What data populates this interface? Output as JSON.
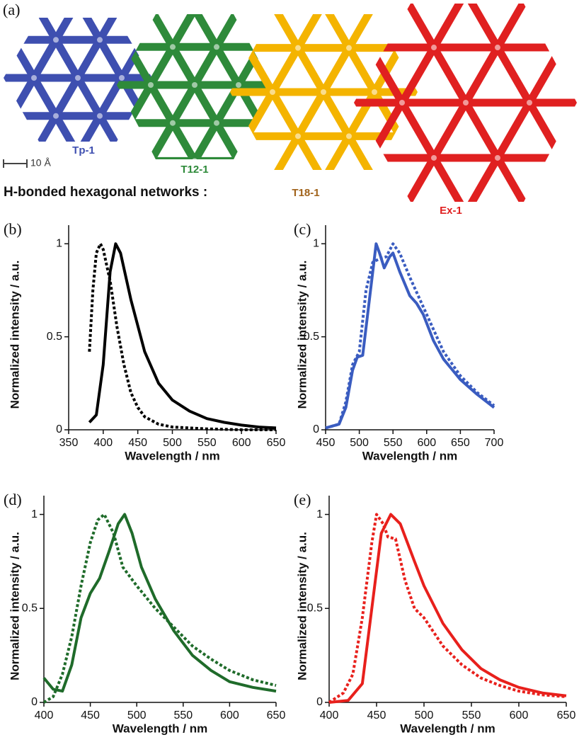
{
  "panel_a": {
    "label": "(a)",
    "scale": "10 Å",
    "caption": "H-bonded hexagonal networks :",
    "networks": [
      {
        "name": "Tp-1",
        "color": "#3e4fb0"
      },
      {
        "name": "T12-1",
        "color": "#2e8a3a"
      },
      {
        "name": "T18-1",
        "color": "#f4b400"
      },
      {
        "name": "Ex-1",
        "color": "#e02020"
      }
    ]
  },
  "chart_data": [
    {
      "type": "line",
      "panel": "(b)",
      "x_label": "Wavelength / nm",
      "y_label": "Normalized intensity / a.u.",
      "xlim": [
        350,
        650
      ],
      "xticks": [
        350,
        400,
        450,
        500,
        550,
        600,
        650
      ],
      "ylim": [
        0,
        1.1
      ],
      "yticks": [
        0,
        0.5,
        1
      ],
      "series": [
        {
          "color": "#000000",
          "dashed": false,
          "x": [
            380,
            390,
            400,
            410,
            418,
            425,
            440,
            460,
            480,
            500,
            525,
            550,
            575,
            600,
            625,
            650
          ],
          "values": [
            0.04,
            0.08,
            0.35,
            0.85,
            1.0,
            0.95,
            0.7,
            0.42,
            0.25,
            0.16,
            0.1,
            0.06,
            0.04,
            0.025,
            0.015,
            0.01
          ]
        },
        {
          "color": "#000000",
          "dashed": true,
          "x": [
            380,
            385,
            390,
            396,
            400,
            410,
            420,
            430,
            440,
            450,
            460,
            480,
            500,
            550,
            600,
            650
          ],
          "values": [
            0.42,
            0.75,
            0.95,
            1.0,
            0.97,
            0.8,
            0.55,
            0.35,
            0.2,
            0.12,
            0.07,
            0.03,
            0.015,
            0.005,
            0,
            0
          ]
        }
      ]
    },
    {
      "type": "line",
      "panel": "(c)",
      "x_label": "Wavelength / nm",
      "y_label": "Normalized intensity / a.u.",
      "xlim": [
        450,
        700
      ],
      "xticks": [
        450,
        500,
        550,
        600,
        650,
        700
      ],
      "ylim": [
        0,
        1.1
      ],
      "yticks": [
        0,
        0.5,
        1
      ],
      "series": [
        {
          "color": "#3a5cc0",
          "dashed": false,
          "x": [
            450,
            470,
            480,
            490,
            497,
            505,
            515,
            525,
            530,
            537,
            545,
            550,
            560,
            575,
            585,
            595,
            610,
            625,
            650,
            675,
            700
          ],
          "values": [
            0.01,
            0.03,
            0.12,
            0.32,
            0.39,
            0.4,
            0.7,
            1.0,
            0.95,
            0.87,
            0.93,
            0.95,
            0.85,
            0.72,
            0.68,
            0.62,
            0.48,
            0.38,
            0.27,
            0.19,
            0.12
          ]
        },
        {
          "color": "#3a5cc0",
          "dashed": true,
          "x": [
            450,
            470,
            480,
            490,
            500,
            510,
            520,
            530,
            540,
            550,
            560,
            575,
            600,
            625,
            650,
            675,
            700
          ],
          "values": [
            0.01,
            0.03,
            0.15,
            0.35,
            0.42,
            0.75,
            0.9,
            0.92,
            0.93,
            1.0,
            0.95,
            0.82,
            0.62,
            0.42,
            0.29,
            0.2,
            0.13
          ]
        }
      ]
    },
    {
      "type": "line",
      "panel": "(d)",
      "x_label": "Wavelength / nm",
      "y_label": "Normalized intensity / a.u.",
      "xlim": [
        400,
        650
      ],
      "xticks": [
        400,
        450,
        500,
        550,
        600,
        650
      ],
      "ylim": [
        0,
        1.1
      ],
      "yticks": [
        0,
        0.5,
        1
      ],
      "series": [
        {
          "color": "#1f6b2a",
          "dashed": false,
          "x": [
            400,
            410,
            420,
            430,
            440,
            450,
            460,
            470,
            480,
            487,
            495,
            505,
            520,
            540,
            560,
            580,
            600,
            625,
            650
          ],
          "values": [
            0.13,
            0.07,
            0.06,
            0.2,
            0.45,
            0.58,
            0.66,
            0.8,
            0.95,
            1.0,
            0.9,
            0.72,
            0.55,
            0.38,
            0.25,
            0.17,
            0.11,
            0.08,
            0.06
          ]
        },
        {
          "color": "#1f6b2a",
          "dashed": true,
          "x": [
            400,
            410,
            420,
            430,
            440,
            450,
            458,
            465,
            475,
            485,
            500,
            520,
            540,
            560,
            580,
            600,
            625,
            650
          ],
          "values": [
            0,
            0.03,
            0.15,
            0.35,
            0.62,
            0.85,
            0.97,
            1.0,
            0.9,
            0.72,
            0.62,
            0.5,
            0.4,
            0.3,
            0.23,
            0.17,
            0.12,
            0.09
          ]
        }
      ]
    },
    {
      "type": "line",
      "panel": "(e)",
      "x_label": "Wavelength / nm",
      "y_label": "Normalized intensity / a.u.",
      "xlim": [
        400,
        650
      ],
      "xticks": [
        400,
        450,
        500,
        550,
        600,
        650
      ],
      "ylim": [
        0,
        1.1
      ],
      "yticks": [
        0,
        0.5,
        1
      ],
      "series": [
        {
          "color": "#e8201c",
          "dashed": false,
          "x": [
            400,
            420,
            435,
            445,
            455,
            465,
            475,
            490,
            500,
            520,
            540,
            560,
            580,
            600,
            625,
            650
          ],
          "values": [
            0,
            0.01,
            0.1,
            0.5,
            0.9,
            1.0,
            0.95,
            0.75,
            0.62,
            0.42,
            0.28,
            0.18,
            0.12,
            0.08,
            0.05,
            0.035
          ]
        },
        {
          "color": "#e8201c",
          "dashed": true,
          "x": [
            400,
            415,
            425,
            435,
            445,
            450,
            457,
            462,
            470,
            480,
            490,
            500,
            520,
            540,
            560,
            580,
            600,
            625,
            650
          ],
          "values": [
            0,
            0.05,
            0.15,
            0.45,
            0.85,
            1.0,
            0.95,
            0.88,
            0.87,
            0.65,
            0.5,
            0.45,
            0.3,
            0.2,
            0.13,
            0.09,
            0.06,
            0.04,
            0.03
          ]
        }
      ]
    }
  ]
}
